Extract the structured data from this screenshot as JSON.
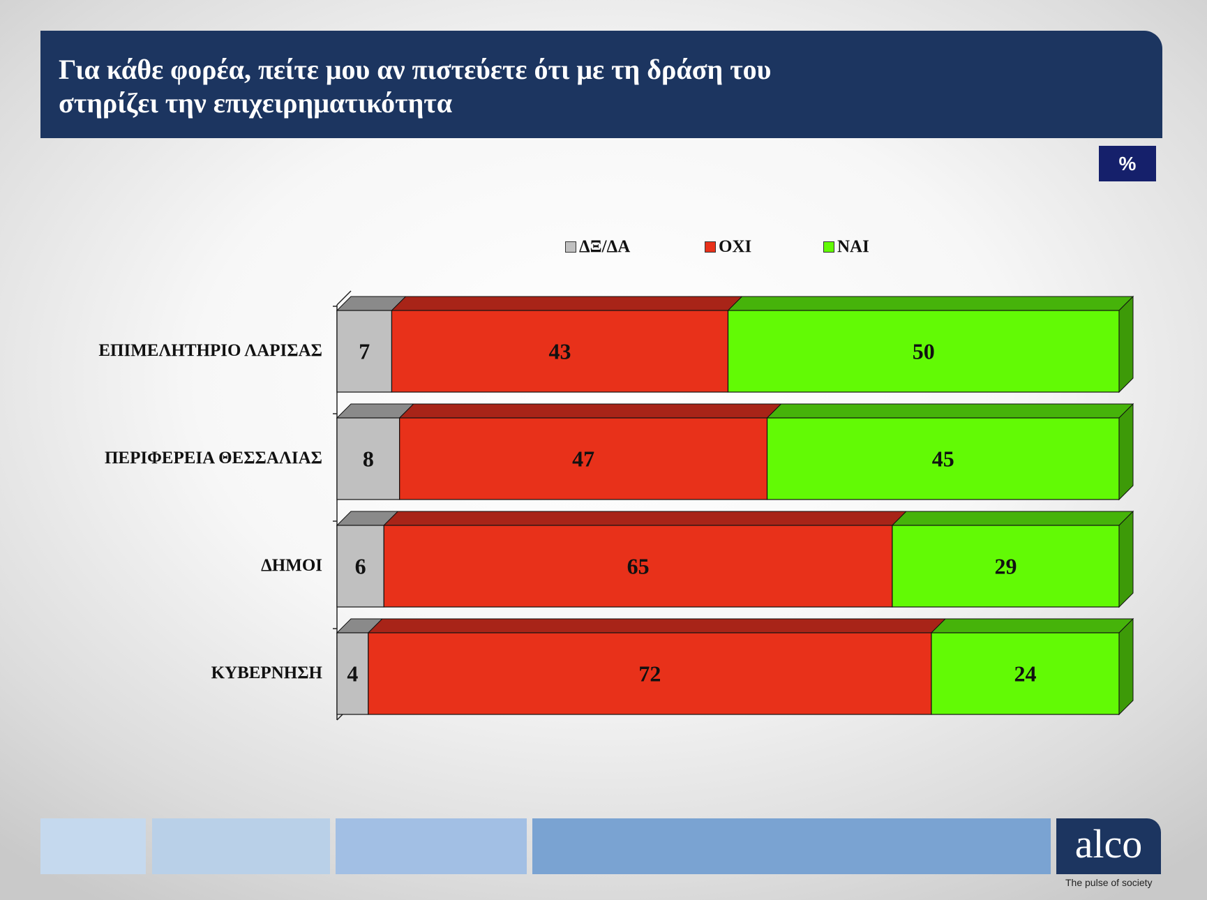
{
  "header": {
    "title_line1": "Για κάθε φορέα, πείτε μου αν πιστεύετε ότι με τη δράση του",
    "title_line2": "στηρίζει την επιχειρηματικότητα"
  },
  "unit_badge": "%",
  "colors": {
    "dk": "#c0c0c0",
    "no": "#e8311a",
    "yes": "#62fa05",
    "header": "#1c3560",
    "footer": [
      "#c5d9ee",
      "#b9d0e8",
      "#a2bfe4",
      "#7aa3d2"
    ]
  },
  "chart_data": {
    "type": "bar",
    "orientation": "horizontal",
    "stacked": true,
    "categories": [
      "ΕΠΙΜΕΛΗΤΗΡΙΟ ΛΑΡΙΣΑΣ",
      "ΠΕΡΙΦΕΡΕΙΑ ΘΕΣΣΑΛΙΑΣ",
      "ΔΗΜΟΙ",
      "ΚΥΒΕΡΝΗΣΗ"
    ],
    "series": [
      {
        "name": "ΔΞ/ΔΑ",
        "color": "#c0c0c0",
        "values": [
          7,
          8,
          6,
          4
        ]
      },
      {
        "name": "ΟΧΙ",
        "color": "#e8311a",
        "values": [
          43,
          47,
          65,
          72
        ]
      },
      {
        "name": "ΝΑΙ",
        "color": "#62fa05",
        "values": [
          50,
          45,
          29,
          24
        ]
      }
    ],
    "xlim": [
      0,
      100
    ],
    "legend_position": "top",
    "data_labels": true,
    "style": "3d"
  },
  "footer": {
    "logo": "alco",
    "tagline": "The pulse of society"
  }
}
